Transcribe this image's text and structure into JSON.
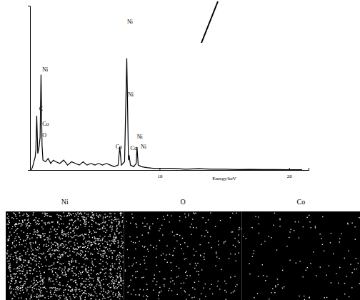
{
  "chart_data": {
    "type": "line",
    "color": "#000000",
    "x_label": "Energy/keV",
    "x": [
      0.1,
      0.2,
      0.3,
      0.4,
      0.45,
      0.52,
      0.6,
      0.7,
      0.78,
      0.85,
      0.93,
      1.0,
      1.2,
      1.4,
      1.6,
      1.8,
      2.0,
      2.3,
      2.6,
      2.9,
      3.2,
      3.5,
      3.8,
      4.1,
      4.4,
      4.7,
      5.0,
      5.3,
      5.6,
      5.9,
      6.2,
      6.5,
      6.8,
      6.93,
      7.05,
      7.3,
      7.47,
      7.6,
      7.65,
      7.75,
      8.0,
      8.2,
      8.26,
      8.35,
      8.6,
      9.0,
      9.5,
      10,
      11,
      12,
      13,
      14,
      15,
      16,
      17,
      18,
      19,
      20,
      21
    ],
    "values": [
      0,
      2,
      5,
      8,
      12,
      33,
      10,
      14,
      20,
      58,
      15,
      6,
      5,
      7,
      4,
      6,
      5,
      4,
      6,
      3,
      5,
      4,
      3,
      5,
      3,
      4,
      3,
      4,
      3,
      4,
      3,
      2,
      3,
      14,
      3,
      5,
      68,
      6,
      9,
      3,
      2,
      4,
      14,
      3,
      2,
      1.5,
      1,
      1,
      1,
      0.5,
      0.8,
      0.5,
      0.5,
      0.3,
      0.4,
      0.3,
      0.3,
      0.2,
      0.2
    ],
    "xlim": [
      0,
      21.5
    ],
    "xticks": [
      10,
      20
    ],
    "ylim": [
      0,
      100
    ],
    "yticks": [],
    "tick_labels": "x",
    "grid": false,
    "annotations": [
      {
        "text": "Ni",
        "x": 7.5,
        "y": 89
      },
      {
        "text": "Ni",
        "x": 0.95,
        "y": 60
      },
      {
        "text": "C",
        "x": 0.7,
        "y": 36
      },
      {
        "text": "Co",
        "x": 0.95,
        "y": 27
      },
      {
        "text": "O",
        "x": 0.95,
        "y": 20
      },
      {
        "text": "Ni",
        "x": 7.55,
        "y": 45
      },
      {
        "text": "Co",
        "x": 6.6,
        "y": 13
      },
      {
        "text": "Ni",
        "x": 8.25,
        "y": 19
      },
      {
        "text": "Co",
        "x": 7.75,
        "y": 12
      },
      {
        "text": "Ni",
        "x": 8.55,
        "y": 13
      }
    ]
  },
  "element_maps": [
    {
      "title": "Ni"
    },
    {
      "title": "O"
    },
    {
      "title": "Co"
    }
  ]
}
